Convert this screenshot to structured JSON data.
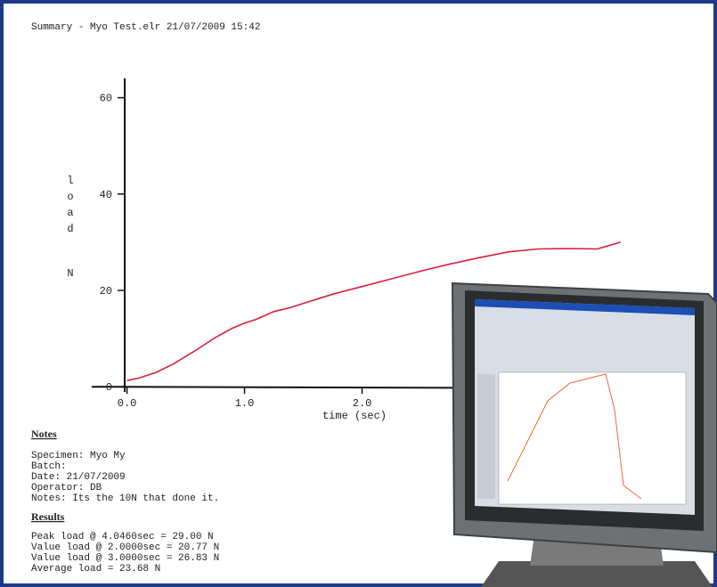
{
  "header": {
    "title": "Summary - Myo Test.elr  21/07/2009 15:42"
  },
  "chart_data": {
    "type": "line",
    "xlabel": "time (sec)",
    "ylabel": "load",
    "yunit": "N",
    "x": [
      0,
      0.1,
      0.25,
      0.4,
      0.5,
      0.6,
      0.75,
      0.9,
      1.0,
      1.1,
      1.25,
      1.4,
      1.5,
      1.75,
      2.0,
      2.25,
      2.5,
      2.75,
      3.0,
      3.25,
      3.5,
      3.75,
      4.0,
      4.1,
      4.2
    ],
    "series": [
      {
        "name": "load",
        "color": "#d8203a",
        "values": [
          1.3,
          1.8,
          3.0,
          4.8,
          6.3,
          7.8,
          10.2,
          12.2,
          13.2,
          14.0,
          15.6,
          16.5,
          17.3,
          19.2,
          20.8,
          22.4,
          24.0,
          25.5,
          26.8,
          28.0,
          28.6,
          28.7,
          28.6,
          29.3,
          30.0
        ]
      }
    ],
    "xlim": [
      -0.3,
      4.8
    ],
    "ylim": [
      -0.7,
      64
    ],
    "xticks": [
      {
        "value": 0,
        "label": "0.0"
      },
      {
        "value": 1,
        "label": "1.0"
      },
      {
        "value": 2,
        "label": "2.0"
      }
    ],
    "yticks": [
      0,
      20,
      40,
      60
    ]
  },
  "notes": {
    "heading": "Notes",
    "lines": [
      "Specimen: Myo My",
      "Batch:",
      "Date: 21/07/2009",
      "Operator: DB",
      "Notes: Its the 10N that done it."
    ]
  },
  "results": {
    "heading": "Results",
    "lines": [
      "Peak load @ 4.0460sec = 29.00 N",
      "Value load @ 2.0000sec = 20.77 N",
      "Value load @ 3.0000sec = 26.83 N",
      "Average load = 23.68 N"
    ]
  }
}
